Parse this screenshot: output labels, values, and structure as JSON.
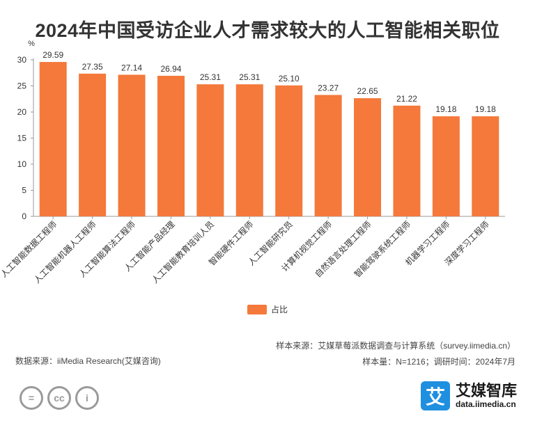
{
  "chart_data": {
    "type": "bar",
    "title": "2024年中国受访企业人才需求较大的人工智能相关职位",
    "ylabel": "%",
    "xlabel": "",
    "ylim": [
      0,
      30
    ],
    "yticks": [
      0,
      5,
      10,
      15,
      20,
      25,
      30
    ],
    "grid": false,
    "legend": "bottom",
    "color": "#F4793B",
    "categories": [
      "人工智能数据工程师",
      "人工智能机器人工程师",
      "人工智能算法工程师",
      "人工智能产品经理",
      "人工智能教育培训人员",
      "智能硬件工程师",
      "人工智能研究员",
      "计算机视觉工程师",
      "自然语言处理工程师",
      "智能驾驶系统工程师",
      "机器学习工程师",
      "深度学习工程师"
    ],
    "series": [
      {
        "name": "占比",
        "values": [
          29.59,
          27.35,
          27.14,
          26.94,
          25.31,
          25.31,
          25.1,
          23.27,
          22.65,
          21.22,
          19.18,
          19.18
        ]
      }
    ],
    "data_labels": [
      "29.59",
      "27.35",
      "27.14",
      "26.94",
      "25.31",
      "25.31",
      "25.10",
      "23.27",
      "22.65",
      "21.22",
      "19.18",
      "19.18"
    ]
  },
  "footer": {
    "sample_source": "样本来源：艾媒草莓派数据调查与计算系统（survey.iimedia.cn）",
    "sample_size": "样本量：N=1216；调研时间：2024年7月",
    "data_source": "数据来源：iiMedia Research(艾媒咨询)"
  },
  "brand": {
    "logo_char": "艾",
    "name": "艾媒智库",
    "url": "data.iimedia.cn"
  },
  "license_icons": [
    "equal-sign-icon",
    "cc-icon",
    "person-icon"
  ],
  "license_labels": [
    "=",
    "cc",
    "i"
  ]
}
